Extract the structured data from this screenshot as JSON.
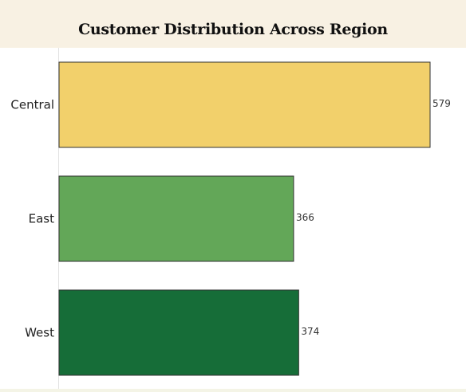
{
  "chart_data": {
    "type": "bar",
    "orientation": "horizontal",
    "title": "Customer Distribution Across Region",
    "categories": [
      "Central",
      "East",
      "West"
    ],
    "values": [
      579,
      366,
      374
    ],
    "colors": [
      "#f2d06b",
      "#63a758",
      "#166d38"
    ],
    "data_labels": true,
    "grid": false,
    "legend": "none"
  }
}
